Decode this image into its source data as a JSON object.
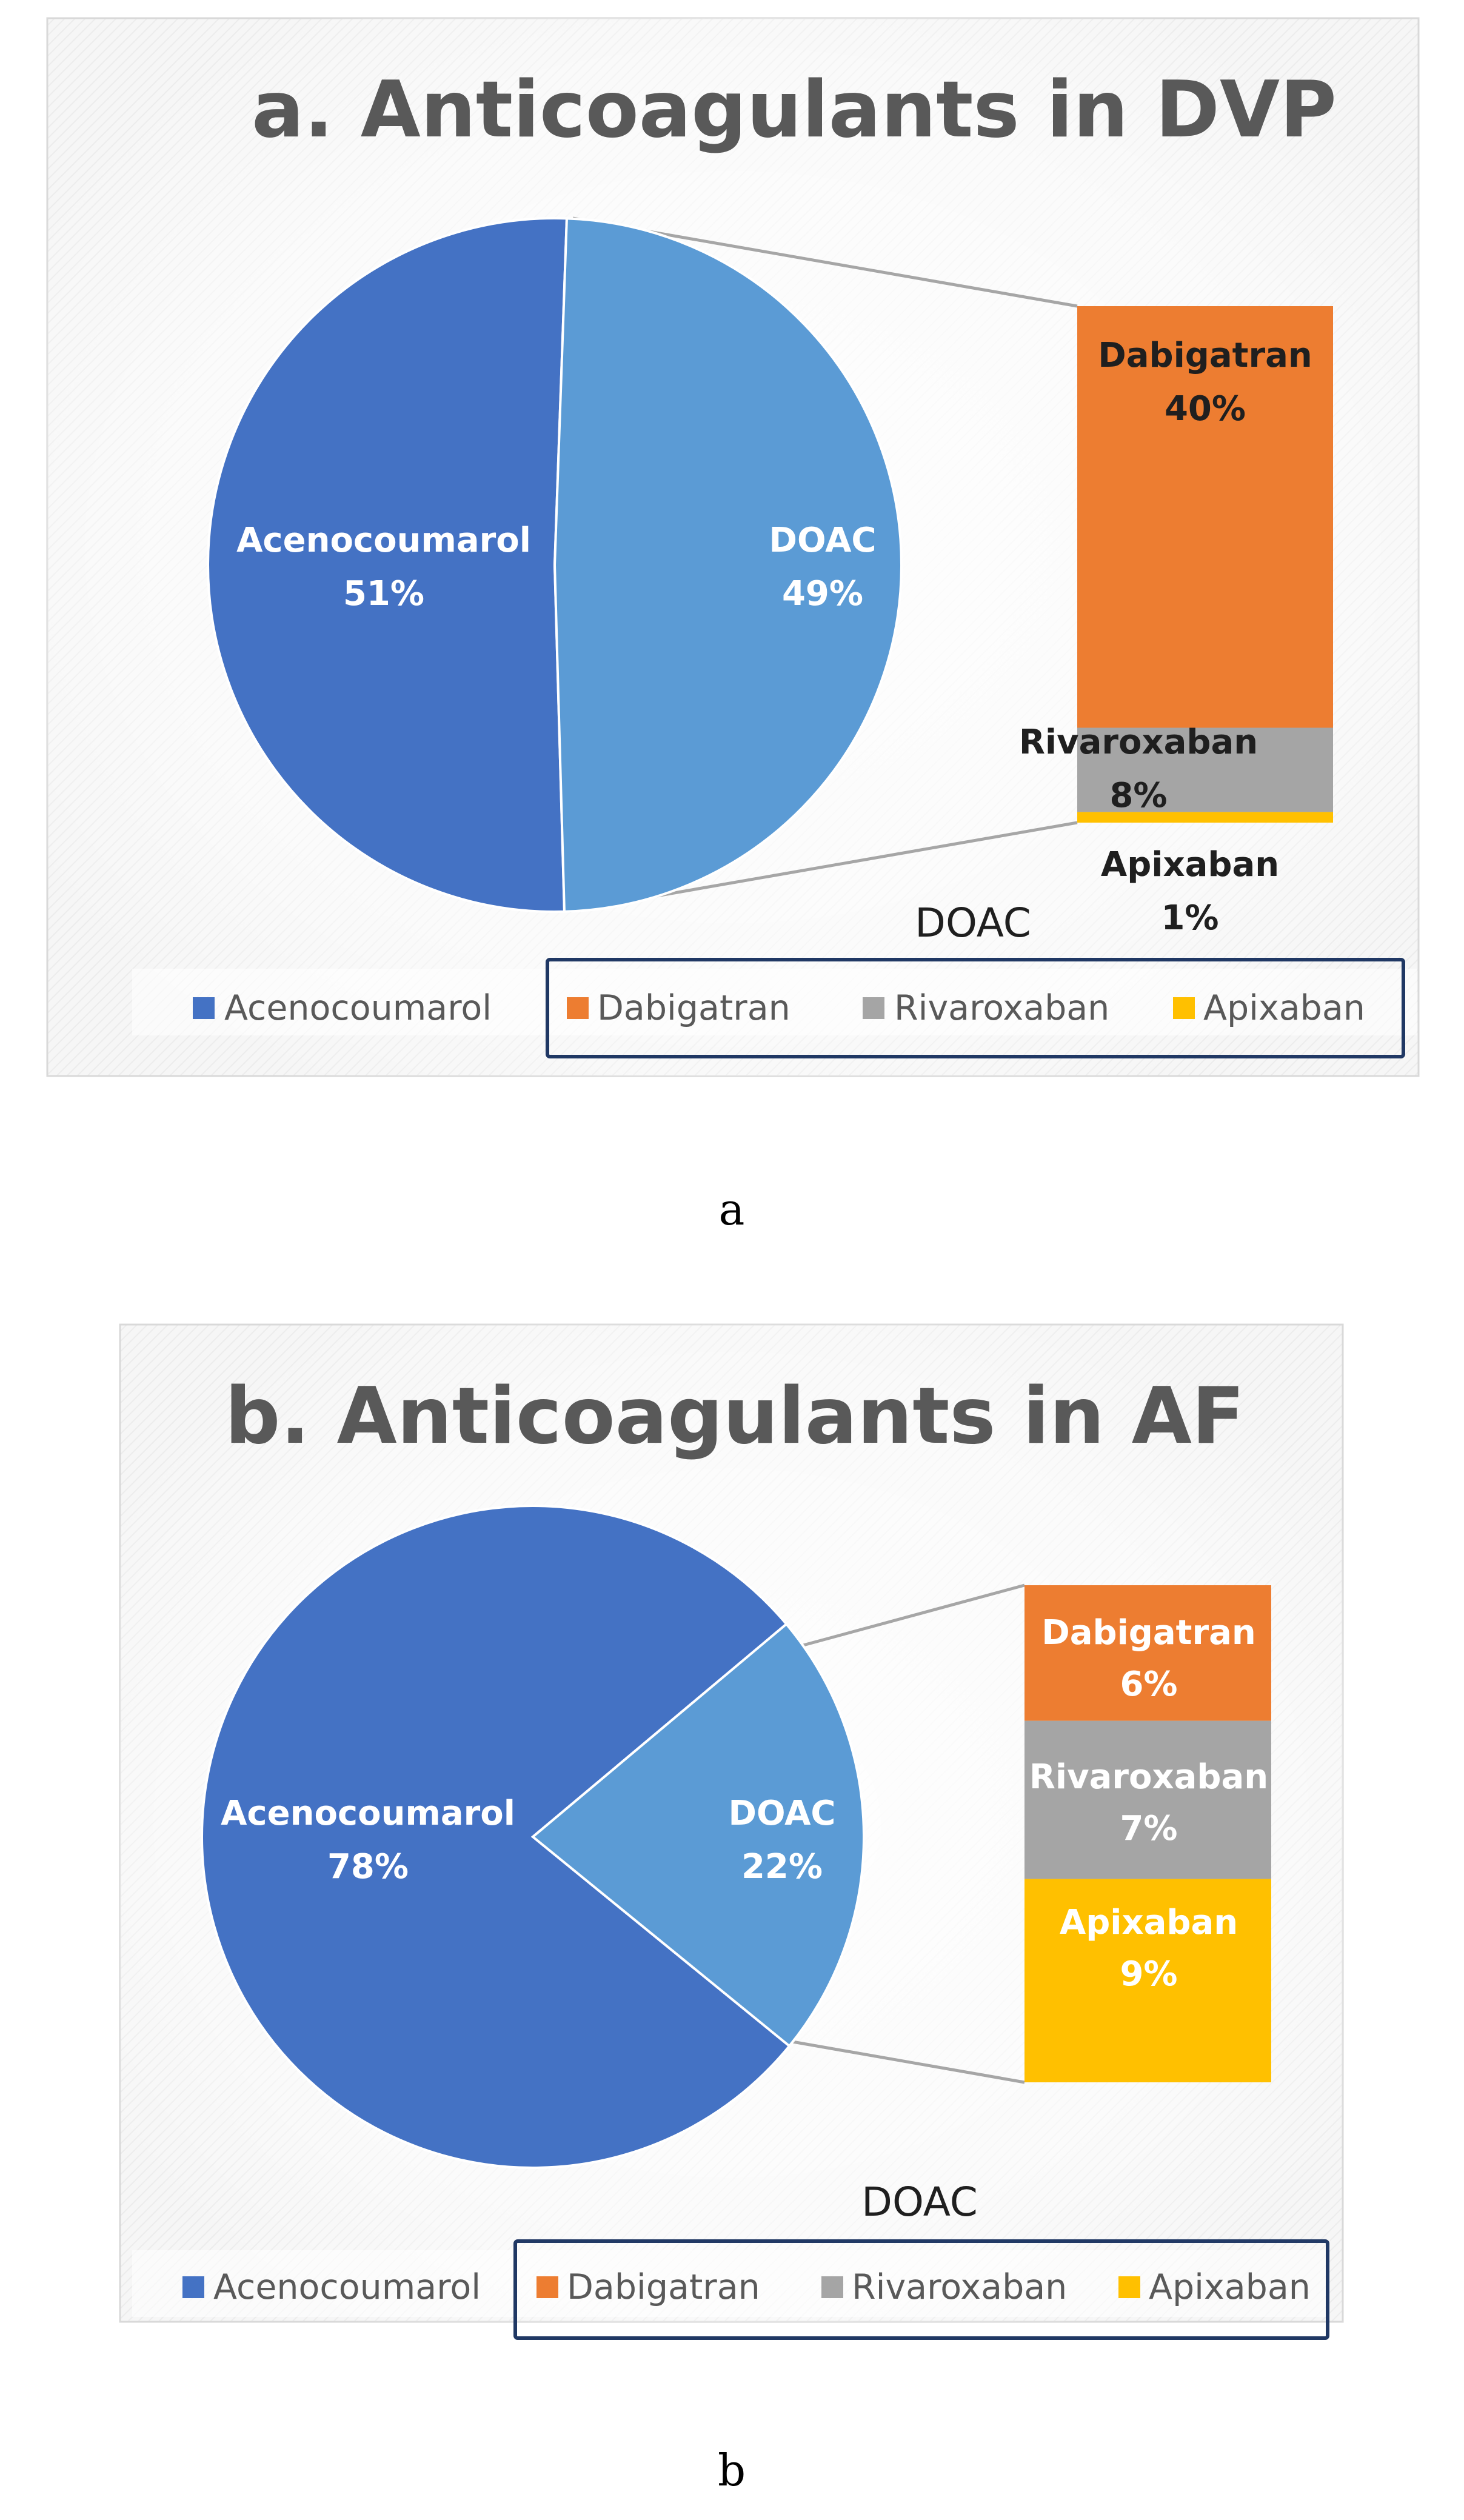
{
  "colors": {
    "acenocoumarol": "#4472C4",
    "doac": "#5B9BD5",
    "dabigatran": "#ED7D31",
    "rivaroxaban": "#A5A5A5",
    "apixaban": "#FFC000"
  },
  "chart_data": [
    {
      "type": "bar-of-pie",
      "title": "a. Anticoagulants in DVP",
      "pie": {
        "slices": [
          {
            "name": "Acenocoumarol",
            "percent": 51,
            "label": "Acenocoumarol",
            "value_label": "51%"
          },
          {
            "name": "DOAC",
            "percent": 49,
            "label": "DOAC",
            "value_label": "49%"
          }
        ]
      },
      "bar": {
        "segments": [
          {
            "name": "Dabigatran",
            "percent": 40,
            "label": "Dabigatran",
            "value_label": "40%"
          },
          {
            "name": "Rivaroxaban",
            "percent": 8,
            "label": "Rivaroxaban",
            "value_label": "8%"
          },
          {
            "name": "Apixaban",
            "percent": 1,
            "label": "Apixaban",
            "value_label": "1%"
          }
        ],
        "caption": "DOAC"
      },
      "legend": [
        "Acenocoumarol",
        "Dabigatran",
        "Rivaroxaban",
        "Apixaban"
      ],
      "legend_position": "bottom",
      "panel_caption": "a"
    },
    {
      "type": "bar-of-pie",
      "title": "b. Anticoagulants in AF",
      "pie": {
        "slices": [
          {
            "name": "Acenocoumarol",
            "percent": 78,
            "label": "Acenocoumarol",
            "value_label": "78%"
          },
          {
            "name": "DOAC",
            "percent": 22,
            "label": "DOAC",
            "value_label": "22%"
          }
        ]
      },
      "bar": {
        "segments": [
          {
            "name": "Dabigatran",
            "percent": 6,
            "label": "Dabigatran",
            "value_label": "6%"
          },
          {
            "name": "Rivaroxaban",
            "percent": 7,
            "label": "Rivaroxaban",
            "value_label": "7%"
          },
          {
            "name": "Apixaban",
            "percent": 9,
            "label": "Apixaban",
            "value_label": "9%"
          }
        ],
        "caption": "DOAC"
      },
      "legend": [
        "Acenocoumarol",
        "Dabigatran",
        "Rivaroxaban",
        "Apixaban"
      ],
      "legend_position": "bottom",
      "panel_caption": "b"
    }
  ]
}
